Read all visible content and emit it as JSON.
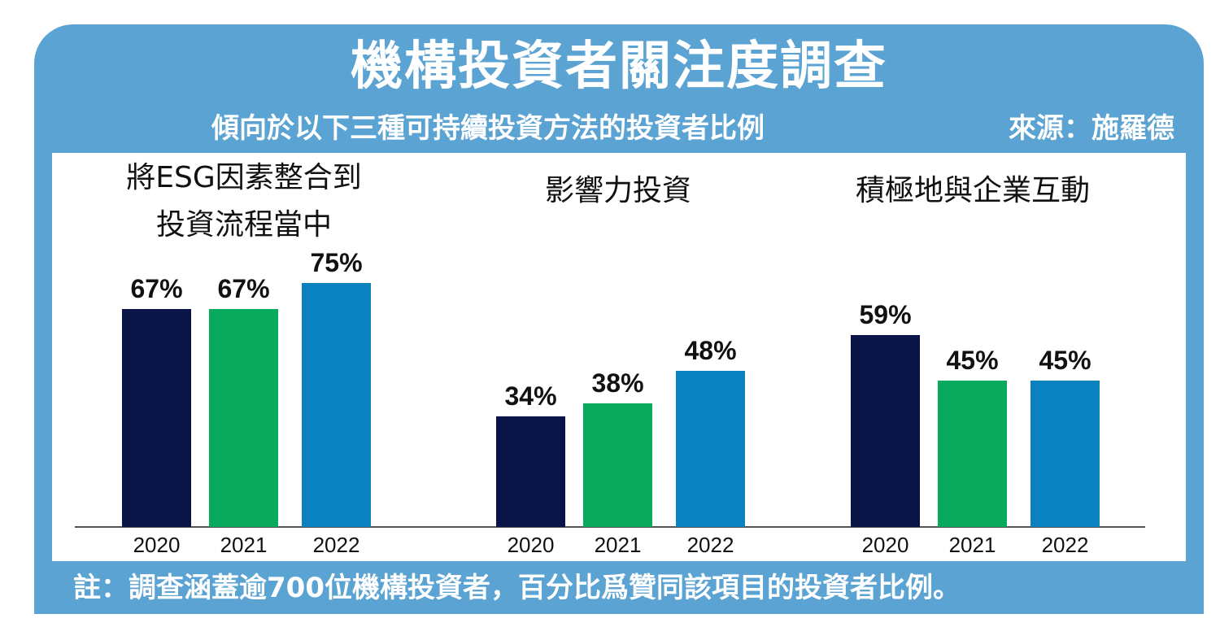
{
  "header": {
    "title": "機構投資者關注度調查",
    "subtitle": "傾向於以下三種可持續投資方法的投資者比例",
    "source": "來源：施羅德"
  },
  "footer": {
    "note": "註：調查涵蓋逾700位機構投資者，百分比爲贊同該項目的投資者比例。"
  },
  "colors": {
    "frame": "#5ba3d2",
    "s2020": "#0b1446",
    "s2021": "#0aaa5e",
    "s2022": "#0a82bf"
  },
  "chart_data": {
    "type": "bar",
    "ylim": [
      0,
      100
    ],
    "grid": false,
    "groups": [
      {
        "label_lines": [
          "將ESG因素整合到",
          "投資流程當中"
        ],
        "categories": [
          "2020",
          "2021",
          "2022"
        ],
        "values": [
          67,
          67,
          75
        ],
        "value_labels": [
          "67%",
          "67%",
          "75%"
        ]
      },
      {
        "label_lines": [
          "影響力投資"
        ],
        "categories": [
          "2020",
          "2021",
          "2022"
        ],
        "values": [
          34,
          38,
          48
        ],
        "value_labels": [
          "34%",
          "38%",
          "48%"
        ]
      },
      {
        "label_lines": [
          "積極地與企業互動"
        ],
        "categories": [
          "2020",
          "2021",
          "2022"
        ],
        "values": [
          59,
          45,
          45
        ],
        "value_labels": [
          "59%",
          "45%",
          "45%"
        ]
      }
    ]
  }
}
